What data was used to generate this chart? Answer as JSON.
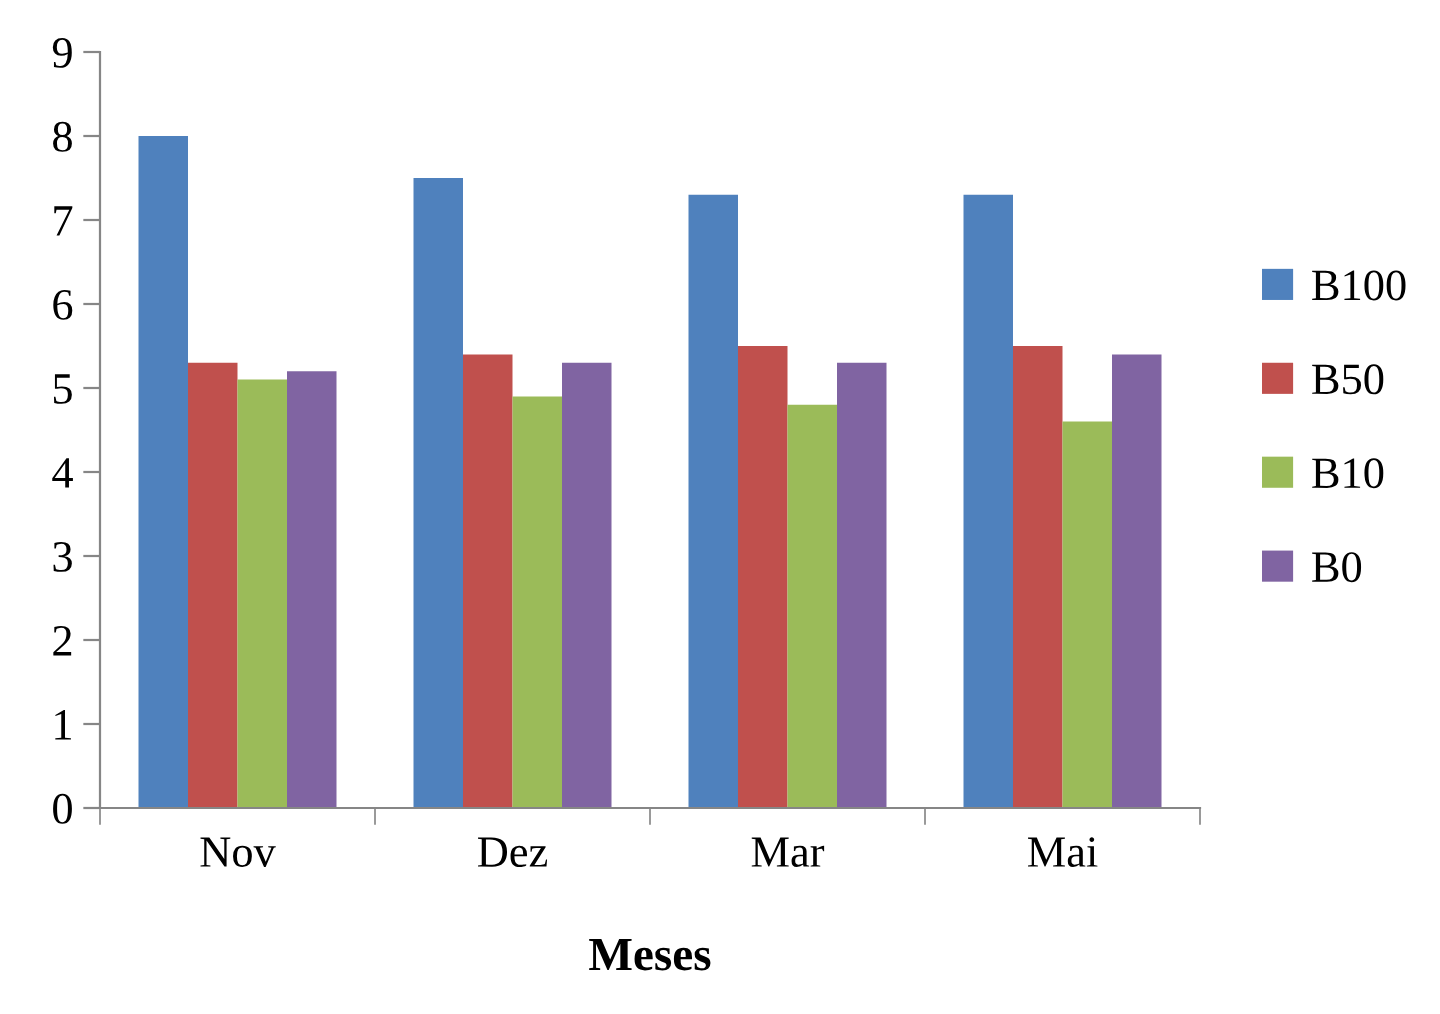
{
  "chart_data": {
    "type": "bar",
    "xlabel": "Meses",
    "categories": [
      "Nov",
      "Dez",
      "Mar",
      "Mai"
    ],
    "series": [
      {
        "name": "B100",
        "color": "#4f81bd",
        "values": [
          8.0,
          7.5,
          7.3,
          7.3
        ]
      },
      {
        "name": "B50",
        "color": "#c0504d",
        "values": [
          5.3,
          5.4,
          5.5,
          5.5
        ]
      },
      {
        "name": "B10",
        "color": "#9bbb59",
        "values": [
          5.1,
          4.9,
          4.8,
          4.6
        ]
      },
      {
        "name": "B0",
        "color": "#8064a2",
        "values": [
          5.2,
          5.3,
          5.3,
          5.4
        ]
      }
    ],
    "ylim": [
      0,
      9
    ],
    "yticks": [
      0,
      1,
      2,
      3,
      4,
      5,
      6,
      7,
      8,
      9
    ],
    "grid": false,
    "legend": "right"
  }
}
